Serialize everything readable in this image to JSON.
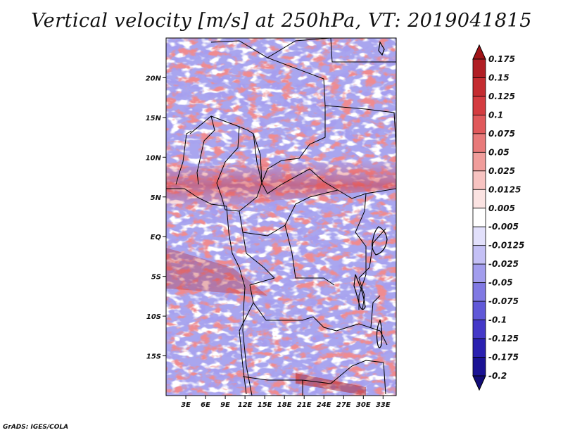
{
  "title": "Vertical velocity [m/s] at 250hPa, VT: 2019041815",
  "footer": "GrADS: IGES/COLA",
  "map": {
    "lon_range": [
      0,
      35
    ],
    "lat_range": [
      -20,
      25
    ],
    "lat_labels": [
      "20N",
      "15N",
      "10N",
      "5N",
      "EQ",
      "5S",
      "10S",
      "15S"
    ],
    "lon_labels": [
      "3E",
      "6E",
      "9E",
      "12E",
      "15E",
      "18E",
      "21E",
      "24E",
      "27E",
      "30E",
      "33E"
    ]
  },
  "colorbar": {
    "levels": [
      "0.175",
      "0.15",
      "0.125",
      "0.1",
      "0.075",
      "0.05",
      "0.025",
      "0.0125",
      "0.005",
      "-0.005",
      "-0.0125",
      "-0.025",
      "-0.05",
      "-0.075",
      "-0.1",
      "-0.125",
      "-0.175",
      "-0.2"
    ],
    "colors": [
      "#a01418",
      "#b01e24",
      "#c42c30",
      "#d43c40",
      "#e0595b",
      "#e87a7a",
      "#f09d9b",
      "#f7c3c1",
      "#fbe3e2",
      "#ffffff",
      "#e2e0fb",
      "#c4c0f5",
      "#a29ded",
      "#8079e3",
      "#6058d8",
      "#4438c8",
      "#2a20b0",
      "#1a1294",
      "#120c78"
    ]
  }
}
